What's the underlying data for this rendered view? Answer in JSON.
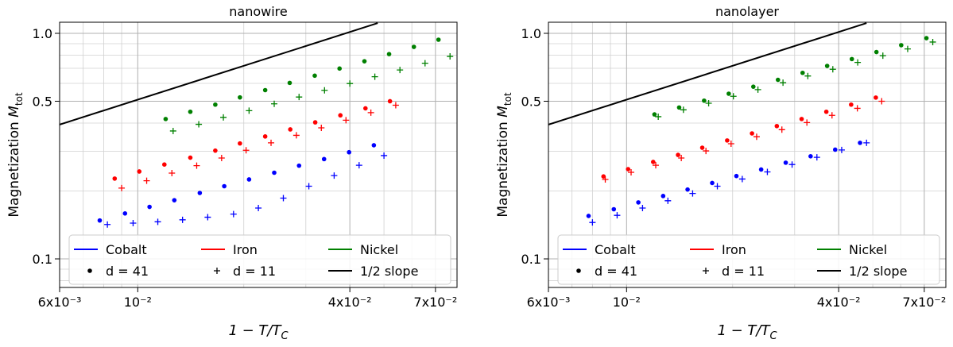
{
  "chart_data": [
    {
      "type": "scatter",
      "title": "nanowire",
      "ylabel": {
        "text": "Magnetization ",
        "symbol": "M",
        "subscript": "tot"
      },
      "xlabel": {
        "text": "1 − T/T",
        "subscript": "C"
      },
      "log_x": true,
      "log_y": true,
      "grid": true,
      "xlim": [
        0.006,
        0.0806
      ],
      "ylim": [
        0.0747,
        1.12
      ],
      "xticks": [
        {
          "value": 0.006,
          "label": "6x10⁻³"
        },
        {
          "value": 0.01,
          "label": "10⁻²"
        },
        {
          "value": 0.04,
          "label": "4x10⁻²"
        },
        {
          "value": 0.07,
          "label": "7x10⁻²"
        }
      ],
      "xminor_ticks": [
        0.007,
        0.008,
        0.009,
        0.02,
        0.03,
        0.05,
        0.06
      ],
      "yticks": [
        0.1,
        0.5,
        {
          "value": 1,
          "label": "1.0"
        }
      ],
      "yminor_ticks": [
        0.08,
        0.09,
        0.2,
        0.3,
        0.4,
        0.6,
        0.7,
        0.8,
        0.9
      ],
      "legend": [
        {
          "label": "Cobalt",
          "color": "blue"
        },
        {
          "label": "Iron",
          "color": "red"
        },
        {
          "label": "Nickel",
          "color": "green"
        },
        {
          "label": "d = 41",
          "marker": "o"
        },
        {
          "label": "d = 11",
          "marker": "+"
        },
        {
          "label": "1/2 slope",
          "color": "black"
        }
      ],
      "reference_line": {
        "color": "black",
        "x": [
          0.006,
          0.048
        ],
        "values": [
          0.394,
          1.11
        ]
      },
      "series": [
        {
          "color": "blue",
          "marker": "o",
          "x": [
            0.0078,
            0.0092,
            0.0108,
            0.0127,
            0.015,
            0.0176,
            0.0207,
            0.0244,
            0.0287,
            0.0338,
            0.0398,
            0.0468
          ],
          "values": [
            0.148,
            0.159,
            0.17,
            0.182,
            0.196,
            0.21,
            0.225,
            0.241,
            0.259,
            0.277,
            0.297,
            0.319
          ]
        },
        {
          "color": "blue",
          "marker": "+",
          "x": [
            0.0082,
            0.0097,
            0.0114,
            0.0134,
            0.0158,
            0.0187,
            0.022,
            0.0259,
            0.0306,
            0.0361,
            0.0425,
            0.05
          ],
          "values": [
            0.142,
            0.144,
            0.146,
            0.149,
            0.153,
            0.158,
            0.168,
            0.186,
            0.21,
            0.234,
            0.26,
            0.287
          ]
        },
        {
          "color": "red",
          "marker": "o",
          "x": [
            0.0086,
            0.0101,
            0.0119,
            0.0141,
            0.0166,
            0.0195,
            0.023,
            0.0271,
            0.0319,
            0.0376,
            0.0443,
            0.052
          ],
          "values": [
            0.227,
            0.244,
            0.262,
            0.281,
            0.302,
            0.325,
            0.349,
            0.375,
            0.403,
            0.433,
            0.465,
            0.5
          ]
        },
        {
          "color": "red",
          "marker": "+",
          "x": [
            0.009,
            0.0106,
            0.0125,
            0.0147,
            0.0173,
            0.0203,
            0.0239,
            0.0282,
            0.0332,
            0.039,
            0.0459,
            0.054
          ],
          "values": [
            0.206,
            0.222,
            0.24,
            0.259,
            0.28,
            0.303,
            0.327,
            0.353,
            0.381,
            0.412,
            0.445,
            0.48
          ]
        },
        {
          "color": "green",
          "marker": "o",
          "x": [
            0.012,
            0.0141,
            0.0166,
            0.0195,
            0.023,
            0.027,
            0.0318,
            0.0374,
            0.044,
            0.0517,
            0.0608,
            0.0714
          ],
          "values": [
            0.417,
            0.449,
            0.483,
            0.52,
            0.56,
            0.603,
            0.649,
            0.698,
            0.752,
            0.809,
            0.871,
            0.937
          ]
        },
        {
          "color": "green",
          "marker": "+",
          "x": [
            0.0126,
            0.0149,
            0.0175,
            0.0207,
            0.0244,
            0.0287,
            0.0339,
            0.04,
            0.0471,
            0.0555,
            0.0654,
            0.077
          ],
          "values": [
            0.369,
            0.395,
            0.424,
            0.454,
            0.487,
            0.522,
            0.559,
            0.599,
            0.642,
            0.688,
            0.737,
            0.79
          ]
        }
      ]
    },
    {
      "type": "scatter",
      "title": "nanolayer",
      "ylabel": {
        "text": "Magnetization ",
        "symbol": "M",
        "subscript": "tot"
      },
      "xlabel": {
        "text": "1 − T/T",
        "subscript": "C"
      },
      "log_x": true,
      "log_y": true,
      "grid": true,
      "xlim": [
        0.006,
        0.0806
      ],
      "ylim": [
        0.0747,
        1.12
      ],
      "xticks": [
        {
          "value": 0.006,
          "label": "6x10⁻³"
        },
        {
          "value": 0.01,
          "label": "10⁻²"
        },
        {
          "value": 0.04,
          "label": "4x10⁻²"
        },
        {
          "value": 0.07,
          "label": "7x10⁻²"
        }
      ],
      "xminor_ticks": [
        0.007,
        0.008,
        0.009,
        0.02,
        0.03,
        0.05,
        0.06
      ],
      "yticks": [
        0.1,
        0.5,
        {
          "value": 1,
          "label": "1.0"
        }
      ],
      "yminor_ticks": [
        0.08,
        0.09,
        0.2,
        0.3,
        0.4,
        0.6,
        0.7,
        0.8,
        0.9
      ],
      "legend": [
        {
          "label": "Cobalt",
          "color": "blue"
        },
        {
          "label": "Iron",
          "color": "red"
        },
        {
          "label": "Nickel",
          "color": "green"
        },
        {
          "label": "d = 41",
          "marker": "o"
        },
        {
          "label": "d = 11",
          "marker": "+"
        },
        {
          "label": "1/2 slope",
          "color": "black"
        }
      ],
      "reference_line": {
        "color": "black",
        "x": [
          0.006,
          0.048
        ],
        "values": [
          0.394,
          1.11
        ]
      },
      "series": [
        {
          "color": "blue",
          "marker": "o",
          "x": [
            0.0078,
            0.0092,
            0.0108,
            0.0127,
            0.0149,
            0.0175,
            0.0205,
            0.0241,
            0.0283,
            0.0333,
            0.0391,
            0.046
          ],
          "values": [
            0.155,
            0.166,
            0.178,
            0.19,
            0.203,
            0.217,
            0.233,
            0.249,
            0.267,
            0.285,
            0.305,
            0.327
          ]
        },
        {
          "color": "blue",
          "marker": "+",
          "x": [
            0.008,
            0.0094,
            0.0111,
            0.0131,
            0.0154,
            0.0181,
            0.0213,
            0.0251,
            0.0295,
            0.0347,
            0.0408,
            0.048
          ],
          "values": [
            0.145,
            0.156,
            0.168,
            0.181,
            0.195,
            0.21,
            0.226,
            0.243,
            0.262,
            0.282,
            0.304,
            0.327
          ]
        },
        {
          "color": "red",
          "marker": "o",
          "x": [
            0.0086,
            0.0101,
            0.0119,
            0.014,
            0.0164,
            0.0193,
            0.0227,
            0.0267,
            0.0314,
            0.0369,
            0.0434,
            0.051
          ],
          "values": [
            0.232,
            0.25,
            0.269,
            0.289,
            0.311,
            0.335,
            0.36,
            0.388,
            0.417,
            0.449,
            0.483,
            0.519
          ]
        },
        {
          "color": "red",
          "marker": "+",
          "x": [
            0.0087,
            0.0103,
            0.0121,
            0.0143,
            0.0168,
            0.0198,
            0.0234,
            0.0276,
            0.0325,
            0.0383,
            0.0452,
            0.053
          ],
          "values": [
            0.225,
            0.242,
            0.26,
            0.28,
            0.301,
            0.324,
            0.348,
            0.374,
            0.402,
            0.433,
            0.465,
            0.5
          ]
        },
        {
          "color": "green",
          "marker": "o",
          "x": [
            0.012,
            0.0141,
            0.0166,
            0.0195,
            0.0229,
            0.0269,
            0.0316,
            0.0371,
            0.0436,
            0.0512,
            0.0602,
            0.071
          ],
          "values": [
            0.437,
            0.469,
            0.503,
            0.54,
            0.58,
            0.622,
            0.668,
            0.717,
            0.769,
            0.826,
            0.886,
            0.952
          ]
        },
        {
          "color": "green",
          "marker": "+",
          "x": [
            0.0123,
            0.0145,
            0.0171,
            0.0201,
            0.0236,
            0.0278,
            0.0327,
            0.0385,
            0.0453,
            0.0534,
            0.0628,
            0.074
          ],
          "values": [
            0.427,
            0.458,
            0.49,
            0.526,
            0.563,
            0.604,
            0.647,
            0.693,
            0.743,
            0.796,
            0.853,
            0.915
          ]
        }
      ]
    }
  ]
}
